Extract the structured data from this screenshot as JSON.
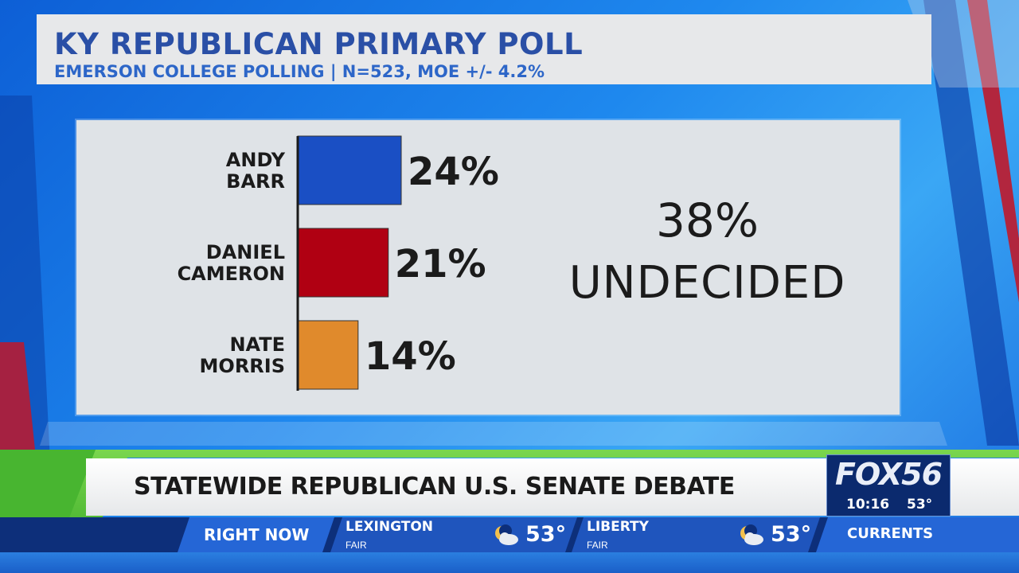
{
  "chart_data": {
    "type": "bar",
    "orientation": "horizontal",
    "title": "KY REPUBLICAN PRIMARY POLL",
    "subtitle": "EMERSON COLLEGE POLLING | N=523, MOE +/- 4.2%",
    "categories": [
      "ANDY BARR",
      "DANIEL CAMERON",
      "NATE MORRIS"
    ],
    "category_lines": [
      [
        "ANDY",
        "BARR"
      ],
      [
        "DANIEL",
        "CAMERON"
      ],
      [
        "NATE",
        "MORRIS"
      ]
    ],
    "values": [
      24,
      21,
      14
    ],
    "value_labels": [
      "24%",
      "21%",
      "14%"
    ],
    "colors": [
      "#1a4fc4",
      "#b00012",
      "#e08a2c"
    ],
    "xlim": [
      0,
      38
    ],
    "grid": false,
    "legend": "none",
    "annotation": {
      "value": "38%",
      "label": "UNDECIDED"
    }
  },
  "ticker": {
    "headline": "STATEWIDE REPUBLICAN U.S. SENATE DEBATE",
    "logo": "FOX56",
    "time": "10:16",
    "temp": "53°"
  },
  "weather": {
    "right_now": "RIGHT NOW",
    "locations": [
      {
        "city": "LEXINGTON",
        "condition": "FAIR",
        "temp": "53°",
        "icon": "partly-cloudy-night-icon"
      },
      {
        "city": "LIBERTY",
        "condition": "FAIR",
        "temp": "53°",
        "icon": "partly-cloudy-night-icon"
      }
    ],
    "next": "CURRENTS"
  },
  "colors": {
    "title": "#2a4fa6",
    "subtitle": "#2d66c8",
    "ticker_green": "#5cc93a",
    "weather_bar": "#0d2f7a"
  }
}
